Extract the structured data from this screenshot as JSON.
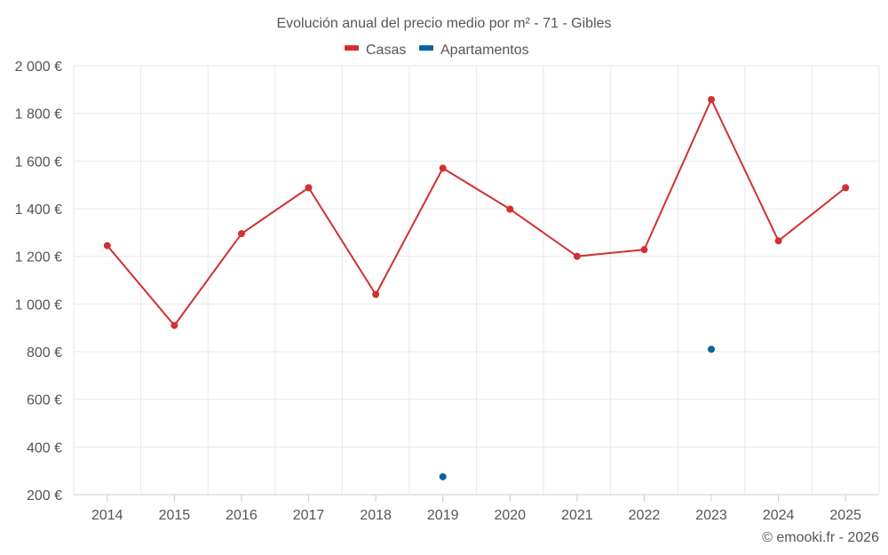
{
  "chart_data": {
    "type": "line",
    "title": "Evolución anual del precio medio por m² - 71 - Gibles",
    "categories": [
      "2014",
      "2015",
      "2016",
      "2017",
      "2018",
      "2019",
      "2020",
      "2021",
      "2022",
      "2023",
      "2024",
      "2025"
    ],
    "y_ticks": [
      200,
      400,
      600,
      800,
      1000,
      1200,
      1400,
      1600,
      1800,
      2000
    ],
    "y_tick_labels": [
      "200 €",
      "400 €",
      "600 €",
      "800 €",
      "1 000 €",
      "1 200 €",
      "1 400 €",
      "1 600 €",
      "1 800 €",
      "2 000 €"
    ],
    "ylim": [
      200,
      2000
    ],
    "grid": true,
    "legend_position": "top-center",
    "series": [
      {
        "name": "Casas",
        "color": "#d32f2f",
        "values": [
          1245,
          910,
          1295,
          1488,
          1040,
          1570,
          1398,
          1200,
          1228,
          1858,
          1265,
          1488
        ]
      },
      {
        "name": "Apartamentos",
        "color": "#0b64a0",
        "values": [
          null,
          null,
          null,
          null,
          null,
          275,
          null,
          null,
          null,
          810,
          null,
          null
        ]
      }
    ],
    "credit": "© emooki.fr - 2026"
  }
}
